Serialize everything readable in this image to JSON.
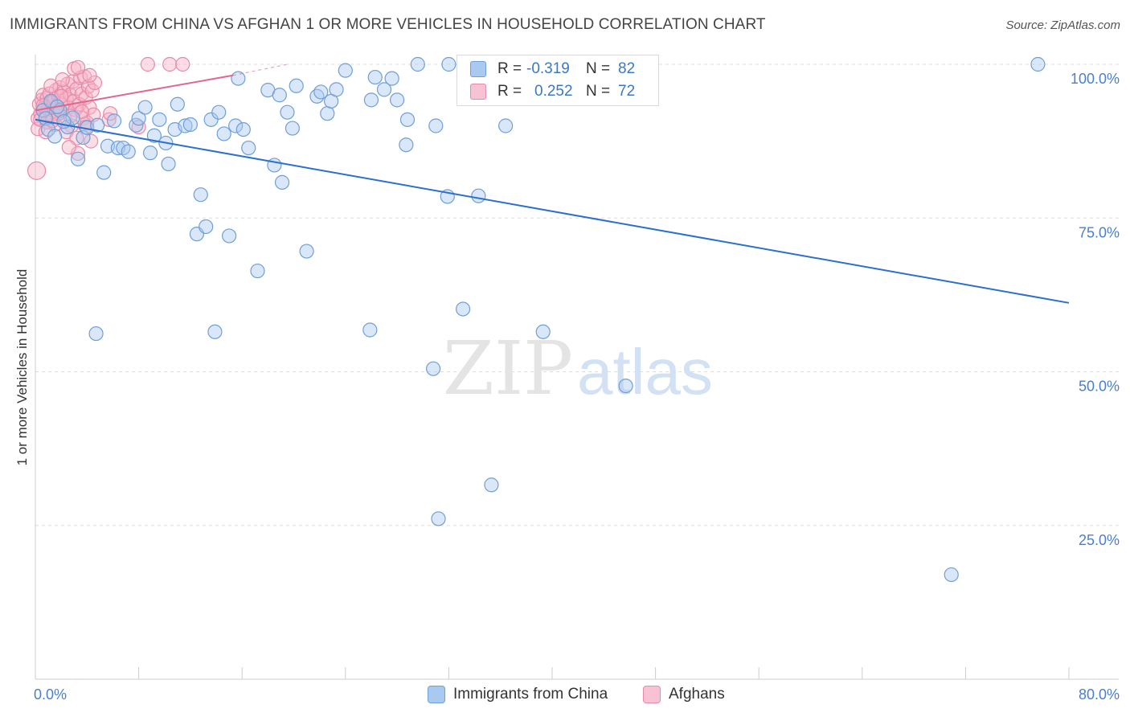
{
  "title": "IMMIGRANTS FROM CHINA VS AFGHAN 1 OR MORE VEHICLES IN HOUSEHOLD CORRELATION CHART",
  "source": "Source: ZipAtlas.com",
  "watermark": {
    "zip": "ZIP",
    "atlas": "atlas"
  },
  "colors": {
    "china_fill": "#aac9f0",
    "china_stroke": "#6f9fd8",
    "china_line": "#2b6fcf",
    "afghan_fill": "#f7b3c8",
    "afghan_stroke": "#e88aa8",
    "afghan_line": "#e2668e",
    "axis_text": "#4a7fd0",
    "grid": "#dddddd"
  },
  "legend": {
    "china": {
      "r_label": "R =",
      "r_value": "-0.319",
      "n_label": "N =",
      "n_value": "82"
    },
    "afghan": {
      "r_label": "R =",
      "r_value": "0.252",
      "n_label": "N =",
      "n_value": "72"
    }
  },
  "bottom_legend": {
    "china": "Immigrants from China",
    "afghan": "Afghans"
  },
  "chart_data": {
    "type": "scatter",
    "title": "IMMIGRANTS FROM CHINA VS AFGHAN 1 OR MORE VEHICLES IN HOUSEHOLD CORRELATION CHART",
    "xlabel": "",
    "ylabel": "1 or more Vehicles in Household",
    "xlim": [
      0,
      80
    ],
    "ylim": [
      0,
      100
    ],
    "x_tick_labels": [
      {
        "value": 0,
        "label": "0.0%"
      },
      {
        "value": 80,
        "label": "80.0%"
      }
    ],
    "y_tick_labels": [
      {
        "value": 100,
        "label": "100.0%"
      },
      {
        "value": 75,
        "label": "75.0%"
      },
      {
        "value": 50,
        "label": "50.0%"
      },
      {
        "value": 25,
        "label": "25.0%"
      }
    ],
    "grid": "horizontal dashed",
    "series": [
      {
        "name": "Immigrants from China",
        "R": -0.319,
        "N": 82,
        "trend": {
          "x": [
            0,
            80
          ],
          "y": [
            91.0,
            61.2
          ]
        },
        "points": [
          [
            0.6,
            92.5
          ],
          [
            0.8,
            91.2
          ],
          [
            1.0,
            89.4
          ],
          [
            1.2,
            94.0
          ],
          [
            1.5,
            88.3
          ],
          [
            1.9,
            92.5
          ],
          [
            2.5,
            89.8
          ],
          [
            2.9,
            91.3
          ],
          [
            3.3,
            84.6
          ],
          [
            3.7,
            88.1
          ],
          [
            4.0,
            89.7
          ],
          [
            4.8,
            90.1
          ],
          [
            4.7,
            56.2
          ],
          [
            5.3,
            82.4
          ],
          [
            5.6,
            86.7
          ],
          [
            6.1,
            90.8
          ],
          [
            6.4,
            86.4
          ],
          [
            6.8,
            86.4
          ],
          [
            7.2,
            85.8
          ],
          [
            7.8,
            90.1
          ],
          [
            8.0,
            91.2
          ],
          [
            8.5,
            93.0
          ],
          [
            8.9,
            85.6
          ],
          [
            9.2,
            88.4
          ],
          [
            9.6,
            91.0
          ],
          [
            10.1,
            87.2
          ],
          [
            10.3,
            83.8
          ],
          [
            10.8,
            89.4
          ],
          [
            11.0,
            93.5
          ],
          [
            11.6,
            90.0
          ],
          [
            12.0,
            90.2
          ],
          [
            12.5,
            72.4
          ],
          [
            12.8,
            78.8
          ],
          [
            13.2,
            73.6
          ],
          [
            13.6,
            91.0
          ],
          [
            13.9,
            56.5
          ],
          [
            14.2,
            92.2
          ],
          [
            14.6,
            88.7
          ],
          [
            15.0,
            72.1
          ],
          [
            15.5,
            90.0
          ],
          [
            15.7,
            97.7
          ],
          [
            16.1,
            89.4
          ],
          [
            16.5,
            86.4
          ],
          [
            17.2,
            66.4
          ],
          [
            18.0,
            95.8
          ],
          [
            18.5,
            83.6
          ],
          [
            18.9,
            95.0
          ],
          [
            19.1,
            80.8
          ],
          [
            19.5,
            92.2
          ],
          [
            19.9,
            89.6
          ],
          [
            20.2,
            96.5
          ],
          [
            21.0,
            69.6
          ],
          [
            21.8,
            94.8
          ],
          [
            22.1,
            95.5
          ],
          [
            22.6,
            92.0
          ],
          [
            22.9,
            94.0
          ],
          [
            23.3,
            95.9
          ],
          [
            24.0,
            99.0
          ],
          [
            25.9,
            56.8
          ],
          [
            26.0,
            94.2
          ],
          [
            26.3,
            97.9
          ],
          [
            27.0,
            95.9
          ],
          [
            27.6,
            97.7
          ],
          [
            28.0,
            94.2
          ],
          [
            28.7,
            86.9
          ],
          [
            28.8,
            91.0
          ],
          [
            29.6,
            100.0
          ],
          [
            30.8,
            50.5
          ],
          [
            31.0,
            90.0
          ],
          [
            31.2,
            26.1
          ],
          [
            31.9,
            78.5
          ],
          [
            32.0,
            100.0
          ],
          [
            33.1,
            60.2
          ],
          [
            34.3,
            78.6
          ],
          [
            35.3,
            31.6
          ],
          [
            36.4,
            90.0
          ],
          [
            39.3,
            56.5
          ],
          [
            45.7,
            47.7
          ],
          [
            70.9,
            17.0
          ],
          [
            77.6,
            100.0
          ],
          [
            1.7,
            93.1
          ],
          [
            2.2,
            90.7
          ]
        ]
      },
      {
        "name": "Afghans",
        "R": 0.252,
        "N": 72,
        "trend": {
          "x": [
            0,
            15.3
          ],
          "y": [
            92.5,
            98.2
          ]
        },
        "trend_extension": {
          "x": [
            15.3,
            19.5
          ],
          "y": [
            98.2,
            100.0
          ]
        },
        "points": [
          [
            0.1,
            82.7
          ],
          [
            0.2,
            91.2
          ],
          [
            0.3,
            93.5
          ],
          [
            0.4,
            92.0
          ],
          [
            0.5,
            94.2
          ],
          [
            0.6,
            95.0
          ],
          [
            0.7,
            93.0
          ],
          [
            0.8,
            91.5
          ],
          [
            0.9,
            94.5
          ],
          [
            1.0,
            92.8
          ],
          [
            1.1,
            95.2
          ],
          [
            1.2,
            93.8
          ],
          [
            1.3,
            91.8
          ],
          [
            1.4,
            94.0
          ],
          [
            1.5,
            92.5
          ],
          [
            1.6,
            95.8
          ],
          [
            1.7,
            93.2
          ],
          [
            1.8,
            94.8
          ],
          [
            1.9,
            96.2
          ],
          [
            2.0,
            92.2
          ],
          [
            2.1,
            93.6
          ],
          [
            2.2,
            95.5
          ],
          [
            2.3,
            91.0
          ],
          [
            2.4,
            94.4
          ],
          [
            2.5,
            96.8
          ],
          [
            2.6,
            93.0
          ],
          [
            2.7,
            95.0
          ],
          [
            2.8,
            90.0
          ],
          [
            2.9,
            97.2
          ],
          [
            3.0,
            94.0
          ],
          [
            3.1,
            92.6
          ],
          [
            3.2,
            96.0
          ],
          [
            3.3,
            85.5
          ],
          [
            3.4,
            93.5
          ],
          [
            3.5,
            97.8
          ],
          [
            3.6,
            95.2
          ],
          [
            3.7,
            91.2
          ],
          [
            3.8,
            98.0
          ],
          [
            3.9,
            94.6
          ],
          [
            4.0,
            90.5
          ],
          [
            4.1,
            96.4
          ],
          [
            4.2,
            93.0
          ],
          [
            4.3,
            87.5
          ],
          [
            4.4,
            95.7
          ],
          [
            4.5,
            91.8
          ],
          [
            4.6,
            97.0
          ],
          [
            0.2,
            89.5
          ],
          [
            0.4,
            91.0
          ],
          [
            0.6,
            93.3
          ],
          [
            0.9,
            90.6
          ],
          [
            1.2,
            96.5
          ],
          [
            1.5,
            90.2
          ],
          [
            1.8,
            92.0
          ],
          [
            2.1,
            97.5
          ],
          [
            2.4,
            89.0
          ],
          [
            2.7,
            91.6
          ],
          [
            3.0,
            99.3
          ],
          [
            3.3,
            99.5
          ],
          [
            3.6,
            92.3
          ],
          [
            3.9,
            89.8
          ],
          [
            4.2,
            98.2
          ],
          [
            5.7,
            91.0
          ],
          [
            5.8,
            92.0
          ],
          [
            8.0,
            89.8
          ],
          [
            8.7,
            100.0
          ],
          [
            10.4,
            100.0
          ],
          [
            11.4,
            100.0
          ],
          [
            3.2,
            88.0
          ],
          [
            2.6,
            86.5
          ],
          [
            1.3,
            90.8
          ],
          [
            0.8,
            89.0
          ],
          [
            2.0,
            94.8
          ]
        ]
      }
    ]
  }
}
